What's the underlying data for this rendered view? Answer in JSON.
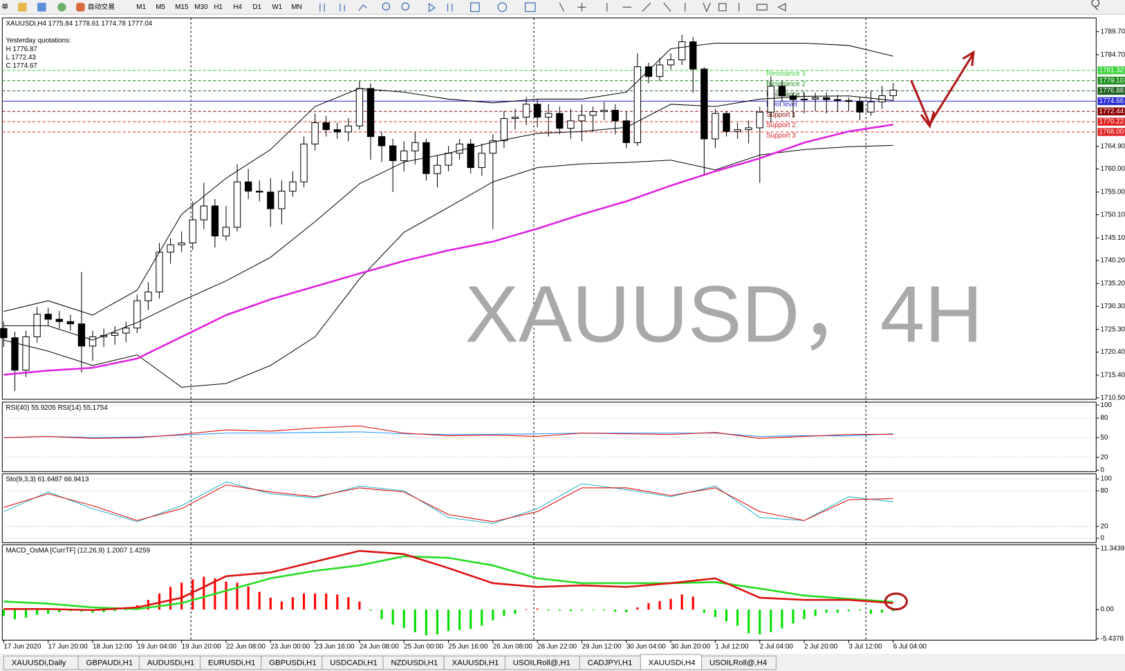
{
  "toolbar": {
    "menu": "单",
    "autotrade": "自动交易",
    "timeframes": [
      "M1",
      "M5",
      "M15",
      "M30",
      "H1",
      "H4",
      "D1",
      "W1",
      "MN"
    ]
  },
  "chart_data": [
    {
      "type": "candlestick",
      "title": "XAUUSDi,H4 1775.84 1778.61 1774.78 1777.04",
      "annotations": [
        "Yesterday quotations:",
        "H 1776.87",
        "L 1772.43",
        "C 1774.67"
      ],
      "watermark": "XAUUSD，4H",
      "categories": [
        "17 Jun 2020",
        null,
        null,
        null,
        "17 Jun 20:00",
        null,
        null,
        null,
        "18 Jun 12:00",
        null,
        null,
        null,
        "19 Jun 04:00",
        null,
        null,
        null,
        "19 Jun 20:00",
        null,
        null,
        null,
        "22 Jun 08:00",
        null,
        null,
        null,
        "23 Jun 00:00",
        null,
        null,
        null,
        "23 Jun 16:00",
        null,
        null,
        null,
        "24 Jun 08:00",
        null,
        null,
        null,
        "25 Jun 00:00",
        null,
        null,
        null,
        "25 Jun 16:00",
        null,
        null,
        null,
        "26 Jun 08:00",
        null,
        null,
        null,
        "28 Jun 22:00",
        null,
        null,
        null,
        "29 Jun 12:00",
        null,
        null,
        null,
        "30 Jun 04:00",
        null,
        null,
        null,
        "30 Jun 20:00",
        null,
        null,
        null,
        "1 Jul 12:00",
        null,
        null,
        null,
        "2 Jul 04:00",
        null,
        null,
        null,
        "2 Jul 20:00",
        null,
        null,
        null,
        "3 Jul 12:00",
        null,
        null,
        null,
        "6 Jul 04:00"
      ],
      "open": [
        1725.5,
        1723.5,
        1716.5,
        1723.7,
        1728.6,
        1727.5,
        1727.0,
        1726.5,
        1721.7,
        1723.7,
        1724.0,
        1724.5,
        1725.6,
        1731.5,
        1733.4,
        1742.0,
        1743.6,
        1744.0,
        1749.0,
        1752.0,
        1745.5,
        1747.4,
        1757.2,
        1755.2,
        1755.0,
        1751.4,
        1755.2,
        1757.2,
        1765.4,
        1770.0,
        1768.5,
        1768.0,
        1769.3,
        1777.4,
        1767.0,
        1765.0,
        1761.8,
        1763.9,
        1765.7,
        1759.0,
        1760.8,
        1763.4,
        1765.4,
        1760.3,
        1763.4,
        1766.1,
        1770.9,
        1771.2,
        1774.0,
        1771.2,
        1772.0,
        1768.8,
        1770.4,
        1771.6,
        1772.4,
        1772.7,
        1770.4,
        1765.7,
        1782.1,
        1780.0,
        1782.5,
        1783.6,
        1787.5,
        1781.6,
        1766.5,
        1772.0,
        1768.1,
        1768.5,
        1768.9,
        1772.3,
        1777.9,
        1775.8,
        1775.0,
        1775.1,
        1775.4,
        1775.0,
        1774.8,
        1774.6,
        1772.3,
        1774.5,
        1775.84
      ],
      "high": [
        1727.0,
        1724.8,
        1725.0,
        1730.2,
        1730.0,
        1729.3,
        1728.5,
        1737.7,
        1725.0,
        1725.5,
        1726.0,
        1727.0,
        1732.8,
        1735.5,
        1744.0,
        1745.0,
        1746.5,
        1753.0,
        1757.0,
        1753.5,
        1752.0,
        1761.0,
        1760.0,
        1757.5,
        1758.0,
        1757.5,
        1759.5,
        1767.0,
        1772.0,
        1771.5,
        1770.0,
        1771.0,
        1779.0,
        1778.5,
        1768.0,
        1766.5,
        1766.0,
        1768.0,
        1766.5,
        1763.0,
        1765.0,
        1766.5,
        1766.5,
        1765.5,
        1767.5,
        1772.5,
        1773.0,
        1775.5,
        1775.0,
        1774.0,
        1773.5,
        1773.0,
        1774.0,
        1773.5,
        1774.5,
        1774.0,
        1772.5,
        1785.0,
        1783.0,
        1784.0,
        1785.0,
        1789.0,
        1788.5,
        1782.0,
        1773.0,
        1772.5,
        1770.0,
        1770.5,
        1773.5,
        1780.0,
        1779.0,
        1776.5,
        1776.5,
        1776.5,
        1776.5,
        1776.0,
        1775.5,
        1775.5,
        1777.0,
        1778.0,
        1778.61
      ],
      "low": [
        1721.5,
        1712.0,
        1715.0,
        1722.5,
        1726.0,
        1725.5,
        1725.0,
        1716.0,
        1718.5,
        1721.5,
        1722.0,
        1722.5,
        1724.5,
        1729.5,
        1732.0,
        1739.5,
        1742.0,
        1742.5,
        1747.0,
        1743.0,
        1744.5,
        1746.5,
        1753.5,
        1753.0,
        1747.5,
        1748.0,
        1754.0,
        1756.0,
        1764.0,
        1767.0,
        1766.5,
        1766.0,
        1768.5,
        1762.0,
        1761.5,
        1755.0,
        1759.5,
        1761.0,
        1757.5,
        1756.0,
        1759.5,
        1762.0,
        1759.0,
        1758.5,
        1747.0,
        1764.5,
        1768.5,
        1769.5,
        1769.0,
        1767.0,
        1767.5,
        1766.5,
        1766.0,
        1768.0,
        1770.5,
        1767.5,
        1764.5,
        1765.0,
        1778.5,
        1779.0,
        1781.5,
        1782.5,
        1776.5,
        1758.5,
        1764.5,
        1767.0,
        1766.5,
        1765.5,
        1757.0,
        1770.0,
        1774.5,
        1771.0,
        1772.0,
        1772.5,
        1772.0,
        1772.5,
        1772.5,
        1770.5,
        1771.5,
        1773.0,
        1774.78
      ],
      "close": [
        1723.5,
        1716.5,
        1723.7,
        1728.6,
        1727.5,
        1727.0,
        1726.5,
        1721.7,
        1723.7,
        1724.0,
        1724.5,
        1725.6,
        1731.5,
        1733.4,
        1742.0,
        1743.6,
        1744.0,
        1749.0,
        1752.0,
        1745.5,
        1747.4,
        1757.2,
        1755.2,
        1755.0,
        1751.4,
        1755.2,
        1757.2,
        1765.4,
        1770.0,
        1768.5,
        1768.0,
        1769.3,
        1777.4,
        1767.0,
        1765.0,
        1761.8,
        1763.9,
        1765.7,
        1759.0,
        1760.8,
        1763.4,
        1765.4,
        1760.3,
        1763.4,
        1766.1,
        1770.9,
        1771.2,
        1774.0,
        1771.2,
        1772.0,
        1768.8,
        1770.4,
        1771.6,
        1772.4,
        1772.7,
        1770.4,
        1765.7,
        1782.1,
        1780.0,
        1782.5,
        1783.6,
        1787.5,
        1781.6,
        1766.5,
        1772.0,
        1768.1,
        1768.5,
        1768.9,
        1772.3,
        1777.9,
        1775.8,
        1775.0,
        1775.1,
        1775.4,
        1775.0,
        1774.8,
        1774.6,
        1772.3,
        1774.5,
        1775.84,
        1777.04
      ],
      "up_color": "#ffffff",
      "down_color": "#000000",
      "x": [
        "17 Jun 2020",
        "17 Jun 20:00",
        "18 Jun 12:00",
        "19 Jun 04:00",
        "19 Jun 20:00",
        "22 Jun 08:00",
        "23 Jun 00:00",
        "23 Jun 16:00",
        "24 Jun 08:00",
        "25 Jun 00:00",
        "25 Jun 16:00",
        "26 Jun 08:00",
        "28 Jun 22:00",
        "29 Jun 12:00",
        "30 Jun 04:00",
        "30 Jun 20:00",
        "1 Jul 12:00",
        "2 Jul 04:00",
        "2 Jul 20:00",
        "3 Jul 12:00",
        "6 Jul 04:00"
      ],
      "series": [
        {
          "color": "#000000",
          "values": [
            1729.2,
            1731.5,
            1728.4,
            1733.8,
            1750.2,
            1758.0,
            1764.2,
            1773.5,
            1777.4,
            1776.6,
            1775.1,
            1774.3,
            1775.1,
            1775.1,
            1776.6,
            1786.0,
            1787.2,
            1787.2,
            1787.2,
            1786.7,
            1784.4
          ]
        },
        {
          "color": "#000000",
          "values": [
            1726.1,
            1726.1,
            1723.0,
            1726.8,
            1731.5,
            1735.8,
            1740.9,
            1748.6,
            1756.8,
            1761.5,
            1763.4,
            1765.8,
            1767.7,
            1768.1,
            1769.0,
            1774.0,
            1773.5,
            1775.1,
            1775.7,
            1775.8,
            1774.8
          ]
        },
        {
          "color": "#000000",
          "values": [
            1723.0,
            1720.6,
            1717.5,
            1719.8,
            1712.8,
            1713.6,
            1717.5,
            1723.7,
            1736.2,
            1746.3,
            1751.7,
            1757.2,
            1760.3,
            1761.1,
            1761.4,
            1761.9,
            1759.8,
            1763.0,
            1764.2,
            1764.8,
            1765.1
          ]
        },
        {
          "color": "#e020e0",
          "width": 2.5,
          "values": [
            1715.5,
            1716.4,
            1717.0,
            1719.0,
            1723.7,
            1728.4,
            1731.8,
            1734.6,
            1737.4,
            1740.1,
            1742.4,
            1744.3,
            1747.1,
            1750.2,
            1753.0,
            1756.4,
            1759.5,
            1762.3,
            1765.7,
            1768.1,
            1769.6
          ]
        }
      ],
      "levels": [
        {
          "name": "Resistance 3",
          "value": 1781.32,
          "color": "#3fd23f",
          "line_style": "dashed"
        },
        {
          "name": "Resistance 2",
          "value": 1779.1,
          "label": "1779.10",
          "color": "#1f8f1f",
          "line_style": "dashed"
        },
        {
          "name": "Resistance 1",
          "value": 1776.88,
          "color": "#1a5e1a",
          "line_style": "dashed"
        },
        {
          "name": "Pivot level",
          "value": 1774.66,
          "color": "#2b2bd8",
          "line_style": "solid"
        },
        {
          "name": "Support 1",
          "value": 1772.44,
          "color": "#8b0000",
          "line_style": "dashed"
        },
        {
          "name": "Support 2",
          "value": 1770.22,
          "color": "#e02020",
          "line_style": "dashed"
        },
        {
          "name": "Support 3",
          "value": 1768.0,
          "label": "1768.00",
          "color": "#e02020",
          "line_style": "dashed"
        }
      ],
      "ylim": [
        1710.19,
        1792.66
      ],
      "yticks": [
        {
          "value": 1789.7,
          "label": "1789.70"
        },
        {
          "value": 1784.7,
          "label": "1784.70"
        },
        {
          "value": 1764.9,
          "label": "1764.90"
        },
        {
          "value": 1760,
          "label": "1760.00"
        },
        {
          "value": 1755,
          "label": "1755.00"
        },
        {
          "value": 1750.1,
          "label": "1750.10"
        },
        {
          "value": 1745.1,
          "label": "1745.10"
        },
        {
          "value": 1740.2,
          "label": "1740.20"
        },
        {
          "value": 1735.2,
          "label": "1735.20"
        },
        {
          "value": 1730.3,
          "label": "1730.30"
        },
        {
          "value": 1725.3,
          "label": "1725.30"
        },
        {
          "value": 1720.4,
          "label": "1720.40"
        },
        {
          "value": 1715.4,
          "label": "1715.40"
        },
        {
          "value": 1710.5,
          "label": "1710.50"
        }
      ],
      "grid": false
    },
    {
      "type": "line",
      "title": "RSI(40) 55.9205  RSI(14) 55.1754",
      "x": [
        "17 Jun 2020",
        "17 Jun 20:00",
        "18 Jun 12:00",
        "19 Jun 04:00",
        "19 Jun 20:00",
        "22 Jun 08:00",
        "23 Jun 00:00",
        "23 Jun 16:00",
        "24 Jun 08:00",
        "25 Jun 00:00",
        "25 Jun 16:00",
        "26 Jun 08:00",
        "28 Jun 22:00",
        "29 Jun 12:00",
        "30 Jun 04:00",
        "30 Jun 20:00",
        "1 Jul 12:00",
        "2 Jul 04:00",
        "2 Jul 20:00",
        "3 Jul 12:00",
        "6 Jul 04:00"
      ],
      "series": [
        {
          "color": "#1e90ff",
          "values": [
            50,
            52,
            50,
            51,
            54,
            57,
            57,
            58,
            59,
            56,
            55,
            55,
            56,
            57,
            57,
            57,
            57,
            52,
            53,
            53,
            55.9
          ]
        },
        {
          "color": "#e00000",
          "values": [
            50,
            52,
            49,
            50,
            55,
            62,
            60,
            65,
            68,
            57,
            53,
            54,
            52,
            57,
            56,
            55,
            58,
            49,
            52,
            55,
            55.2
          ]
        }
      ],
      "ylim": [
        -2.2,
        104.5
      ],
      "yticks": [
        100,
        80,
        50,
        20,
        0
      ],
      "grid": true
    },
    {
      "type": "line",
      "title": "Sto(9,3,3) 61.6487 66.9413",
      "x": [
        "17 Jun 2020",
        "17 Jun 20:00",
        "18 Jun 12:00",
        "19 Jun 04:00",
        "19 Jun 20:00",
        "22 Jun 08:00",
        "23 Jun 00:00",
        "23 Jun 16:00",
        "24 Jun 08:00",
        "25 Jun 00:00",
        "25 Jun 16:00",
        "26 Jun 08:00",
        "28 Jun 22:00",
        "29 Jun 12:00",
        "30 Jun 04:00",
        "30 Jun 20:00",
        "1 Jul 12:00",
        "2 Jul 04:00",
        "2 Jul 20:00",
        "3 Jul 12:00",
        "6 Jul 04:00"
      ],
      "series": [
        {
          "color": "#20b2c8",
          "values": [
            45,
            78,
            50,
            28,
            55,
            95,
            75,
            68,
            88,
            80,
            35,
            25,
            50,
            92,
            82,
            70,
            88,
            35,
            30,
            70,
            61.6
          ]
        },
        {
          "color": "#e00000",
          "values": [
            52,
            75,
            55,
            30,
            50,
            90,
            78,
            70,
            85,
            78,
            40,
            28,
            45,
            85,
            85,
            72,
            85,
            45,
            30,
            65,
            66.9
          ]
        }
      ],
      "ylim": [
        -7.3,
        108.5
      ],
      "yticks": [
        100,
        80,
        20,
        0
      ],
      "grid": true
    },
    {
      "type": "macd",
      "title": "MACD_OsMA [CurrTF] (12,26,9) 1.2007 1.4259",
      "x": [
        "17 Jun 2020",
        "17 Jun 20:00",
        "18 Jun 12:00",
        "19 Jun 04:00",
        "19 Jun 20:00",
        "22 Jun 08:00",
        "23 Jun 00:00",
        "23 Jun 16:00",
        "24 Jun 08:00",
        "25 Jun 00:00",
        "25 Jun 16:00",
        "26 Jun 08:00",
        "28 Jun 22:00",
        "29 Jun 12:00",
        "30 Jun 04:00",
        "30 Jun 20:00",
        "1 Jul 12:00",
        "2 Jul 04:00",
        "2 Jul 20:00",
        "3 Jul 12:00",
        "6 Jul 04:00"
      ],
      "series": [
        {
          "color": "#22dd22",
          "width": 2.5,
          "values": [
            1.5,
            1.1,
            0.4,
            0.1,
            1.2,
            3.5,
            5.8,
            7.2,
            8.2,
            9.9,
            9.6,
            8.2,
            5.8,
            4.9,
            4.9,
            4.9,
            5.1,
            3.9,
            2.6,
            2.0,
            1.4259
          ]
        },
        {
          "color": "#dd1111",
          "width": 2.5,
          "values": [
            0.1,
            0.1,
            -0.1,
            0.4,
            2.2,
            6.2,
            6.9,
            8.9,
            10.9,
            10.3,
            7.7,
            4.9,
            4.2,
            4.5,
            4.2,
            4.9,
            5.8,
            2.2,
            1.8,
            1.8,
            1.2007
          ]
        }
      ],
      "histogram": [
        -1.2,
        -1.8,
        -1.5,
        -1.0,
        -0.8,
        -0.5,
        -0.3,
        -0.4,
        -0.6,
        -0.5,
        -0.3,
        -0.1,
        0.8,
        1.8,
        3.0,
        4.2,
        5.0,
        5.6,
        6.1,
        5.8,
        5.2,
        5.0,
        4.3,
        3.3,
        2.2,
        1.5,
        2.3,
        3.0,
        3.0,
        3.0,
        2.8,
        2.3,
        1.5,
        -0.2,
        -1.8,
        -2.8,
        -3.4,
        -4.2,
        -4.8,
        -4.6,
        -4.0,
        -3.8,
        -3.6,
        -3.0,
        -2.0,
        -1.2,
        -0.8,
        0.1,
        0.2,
        -0.2,
        -0.2,
        -0.3,
        -0.2,
        -0.1,
        -0.2,
        -0.4,
        -0.5,
        0.4,
        1.2,
        1.6,
        2.0,
        2.8,
        2.4,
        -0.6,
        -1.4,
        -2.2,
        -3.0,
        -4.4,
        -4.6,
        -4.2,
        -3.5,
        -2.6,
        -1.8,
        -1.2,
        -0.6,
        -0.6,
        -0.3,
        -0.2,
        -0.8,
        -0.6,
        -0.3
      ],
      "up_color": "#ff0000",
      "down_color": "#00e000",
      "ylim": [
        -5.68,
        12.02
      ],
      "yticks": [
        11.3439,
        {
          "value": 0,
          "label": "0.00"
        },
        -5.4378
      ],
      "grid": false
    }
  ],
  "tabs": {
    "items": [
      "XAUUSDi,Daily",
      "GBPAUDi,H1",
      "AUDUSDi,H1",
      "EURUSDi,H1",
      "GBPUSDi,H1",
      "USDCADi,H1",
      "NZDUSDi,H1",
      "XAUUSDi,H1",
      "USOILRoll@,H1",
      "CADJPYi,H1",
      "XAUUSDi,H4",
      "USOILRoll@,H4"
    ],
    "active": 10
  }
}
